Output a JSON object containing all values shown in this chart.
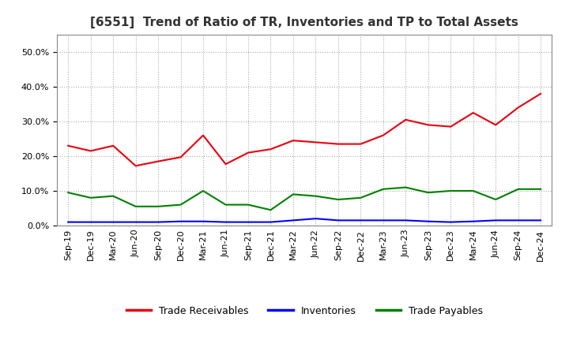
{
  "title": "[6551]  Trend of Ratio of TR, Inventories and TP to Total Assets",
  "x_labels": [
    "Sep-19",
    "Dec-19",
    "Mar-20",
    "Jun-20",
    "Sep-20",
    "Dec-20",
    "Mar-21",
    "Jun-21",
    "Sep-21",
    "Dec-21",
    "Mar-22",
    "Jun-22",
    "Sep-22",
    "Dec-22",
    "Mar-23",
    "Jun-23",
    "Sep-23",
    "Dec-23",
    "Mar-24",
    "Jun-24",
    "Sep-24",
    "Dec-24"
  ],
  "trade_receivables": [
    0.23,
    0.215,
    0.23,
    0.172,
    0.185,
    0.197,
    0.26,
    0.177,
    0.21,
    0.22,
    0.245,
    0.24,
    0.235,
    0.235,
    0.26,
    0.305,
    0.29,
    0.285,
    0.325,
    0.29,
    0.34,
    0.38
  ],
  "inventories": [
    0.01,
    0.01,
    0.01,
    0.01,
    0.01,
    0.012,
    0.012,
    0.01,
    0.01,
    0.01,
    0.015,
    0.02,
    0.015,
    0.015,
    0.015,
    0.015,
    0.012,
    0.01,
    0.012,
    0.015,
    0.015,
    0.015
  ],
  "trade_payables": [
    0.095,
    0.08,
    0.085,
    0.055,
    0.055,
    0.06,
    0.1,
    0.06,
    0.06,
    0.045,
    0.09,
    0.085,
    0.075,
    0.08,
    0.105,
    0.11,
    0.095,
    0.1,
    0.1,
    0.075,
    0.105,
    0.105
  ],
  "tr_color": "#e8000d",
  "inv_color": "#0000ff",
  "tp_color": "#008000",
  "bg_color": "#ffffff",
  "grid_color": "#aaaaaa",
  "ylim": [
    0.0,
    0.55
  ],
  "yticks": [
    0.0,
    0.1,
    0.2,
    0.3,
    0.4,
    0.5
  ],
  "legend_labels": [
    "Trade Receivables",
    "Inventories",
    "Trade Payables"
  ],
  "title_fontsize": 11,
  "tick_fontsize": 8,
  "legend_fontsize": 9
}
